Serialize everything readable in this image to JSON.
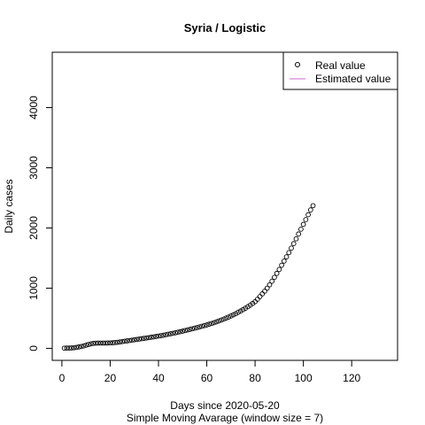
{
  "chart_data": {
    "type": "scatter",
    "title": "Syria / Logistic",
    "xlabel": "Days since 2020-05-20",
    "xlabel_sub": "Simple Moving Avarage (window size = 7)",
    "ylabel": "Daily cases",
    "xlim": [
      -4,
      139
    ],
    "ylim": [
      -200,
      4920
    ],
    "x_ticks": [
      0,
      20,
      40,
      60,
      80,
      100,
      120
    ],
    "y_ticks": [
      0,
      1000,
      2000,
      3000,
      4000
    ],
    "legend_position": "top-right",
    "legend": [
      {
        "label": "Real value",
        "symbol": "circle"
      },
      {
        "label": "Estimated value",
        "symbol": "line",
        "color": "#cc66cc"
      }
    ],
    "series": [
      {
        "name": "Real value",
        "marker": "open-circle",
        "x": [
          1,
          2,
          3,
          4,
          5,
          6,
          7,
          8,
          9,
          10,
          11,
          12,
          13,
          14,
          15,
          16,
          17,
          18,
          19,
          20,
          21,
          22,
          23,
          24,
          25,
          26,
          27,
          28,
          29,
          30,
          31,
          32,
          33,
          34,
          35,
          36,
          37,
          38,
          39,
          40,
          41,
          42,
          43,
          44,
          45,
          46,
          47,
          48,
          49,
          50,
          51,
          52,
          53,
          54,
          55,
          56,
          57,
          58,
          59,
          60,
          61,
          62,
          63,
          64,
          65,
          66,
          67,
          68,
          69,
          70,
          71,
          72,
          73,
          74,
          75,
          76,
          77,
          78,
          79,
          80,
          81,
          82,
          83,
          84,
          85,
          86,
          87,
          88,
          89,
          90,
          91,
          92,
          93,
          94,
          95,
          96,
          97,
          98,
          99,
          100,
          101,
          102,
          103,
          104
        ],
        "y": [
          3,
          4,
          5,
          7,
          10,
          15,
          22,
          30,
          40,
          52,
          64,
          74,
          82,
          86,
          88,
          88,
          88,
          88,
          89,
          90,
          92,
          96,
          100,
          106,
          112,
          118,
          124,
          130,
          136,
          142,
          148,
          154,
          160,
          166,
          172,
          178,
          184,
          190,
          197,
          204,
          211,
          218,
          226,
          234,
          242,
          250,
          258,
          267,
          276,
          285,
          295,
          305,
          315,
          325,
          335,
          345,
          356,
          367,
          378,
          389,
          401,
          413,
          426,
          440,
          455,
          470,
          486,
          503,
          520,
          538,
          557,
          577,
          598,
          620,
          643,
          667,
          692,
          718,
          745,
          775,
          815,
          860,
          905,
          950,
          1000,
          1055,
          1115,
          1180,
          1245,
          1310,
          1380,
          1450,
          1520,
          1590,
          1665,
          1740,
          1820,
          1900,
          1980,
          2060,
          2140,
          2220,
          2300,
          2370
        ]
      }
    ]
  }
}
